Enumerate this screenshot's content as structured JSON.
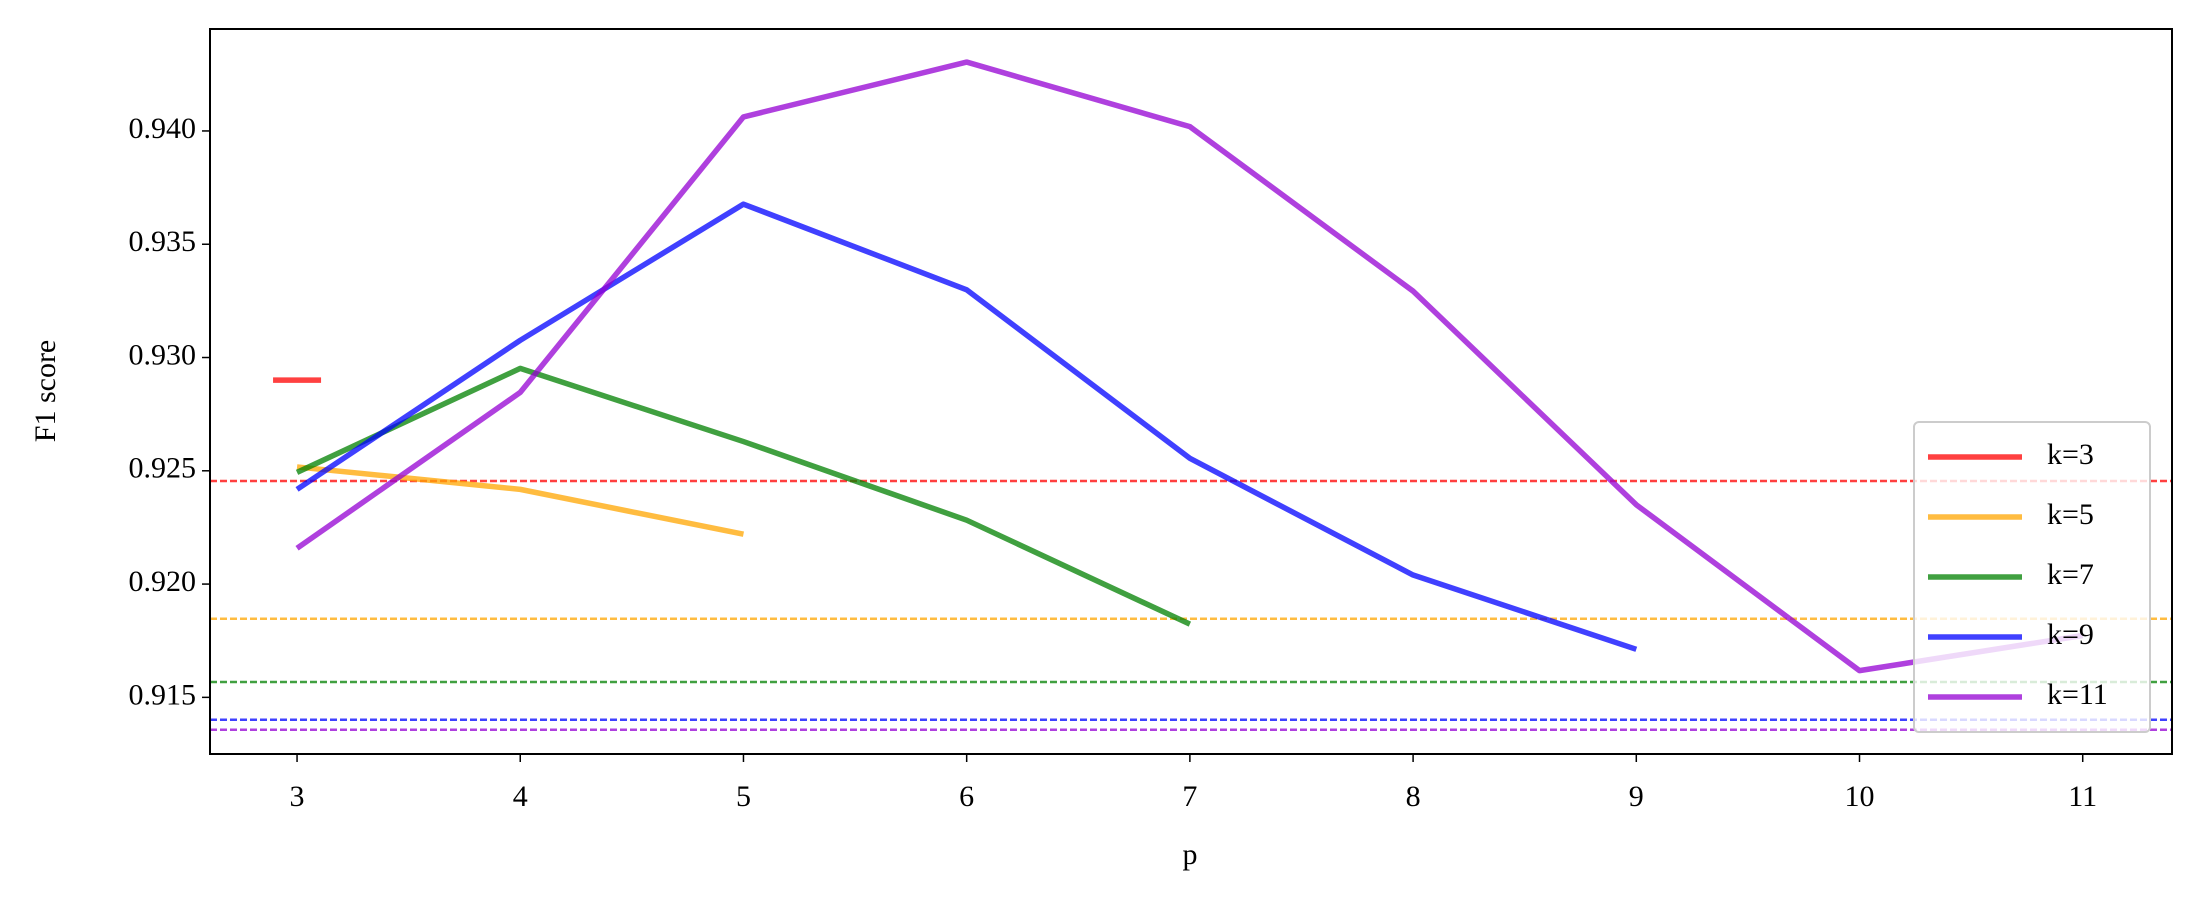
{
  "chart_data": {
    "type": "line",
    "x_label": "p",
    "y_label": "F1 score",
    "x": [
      3,
      4,
      5,
      6,
      7,
      8,
      9,
      10,
      11
    ],
    "series": [
      {
        "name": "k=3",
        "color": "red",
        "values": [
          0.929,
          null,
          null,
          null,
          null,
          null,
          null,
          null,
          null
        ],
        "baseline": 0.92455
      },
      {
        "name": "k=5",
        "color": "orange",
        "values": [
          0.92517,
          0.92418,
          0.9222,
          null,
          null,
          null,
          null,
          null,
          null
        ],
        "baseline": 0.91847
      },
      {
        "name": "k=7",
        "color": "green",
        "values": [
          0.92493,
          0.92952,
          0.92629,
          0.92282,
          0.91823,
          null,
          null,
          null,
          null
        ],
        "baseline": 0.91568
      },
      {
        "name": "k=9",
        "color": "blue",
        "values": [
          0.92418,
          0.93076,
          0.93677,
          0.93299,
          0.92555,
          0.9204,
          0.91712,
          null,
          null
        ],
        "baseline": 0.91401
      },
      {
        "name": "k=11",
        "color": "darkviolet",
        "values": [
          0.92158,
          0.92846,
          0.94062,
          0.94304,
          0.94019,
          0.93293,
          0.9235,
          0.91618,
          0.91773
        ],
        "baseline": 0.91357
      }
    ],
    "xlim": [
      2.61,
      11.4
    ],
    "xticks": [
      3,
      4,
      5,
      6,
      7,
      8,
      9,
      10,
      11
    ],
    "ylim": [
      0.9125,
      0.9445
    ],
    "yticks": [
      0.915,
      {
        "value": 0.92,
        "label": "0.920"
      },
      0.925,
      {
        "value": 0.93,
        "label": "0.930"
      },
      0.935,
      {
        "value": 0.94,
        "label": "0.940"
      }
    ],
    "grid": false,
    "legend": "lower right"
  }
}
